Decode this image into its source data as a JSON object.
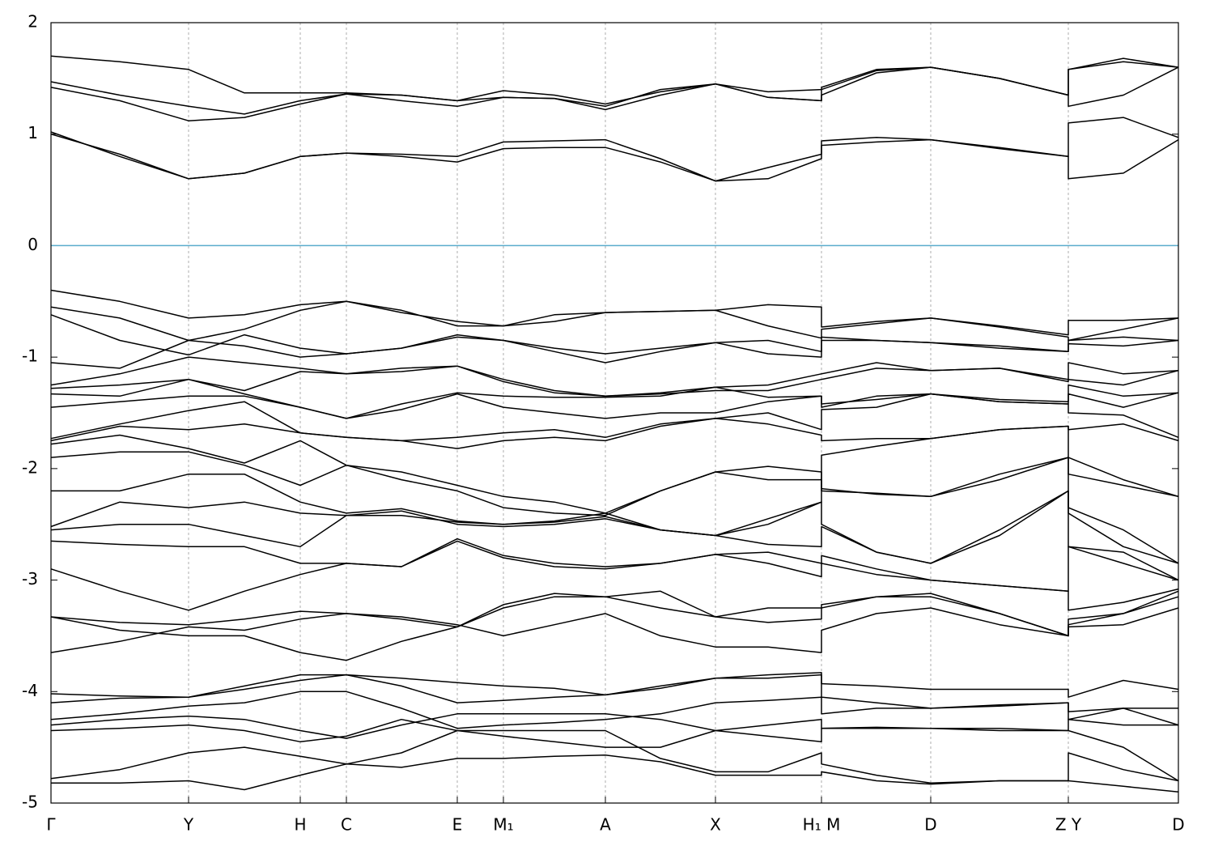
{
  "chart_data": {
    "type": "line",
    "color": "#000000",
    "x": [
      0,
      0.85,
      1.7,
      2.39,
      3.08,
      3.65,
      4.33,
      5.02,
      5.59,
      6.22,
      6.85,
      7.53,
      8.21,
      8.86,
      9.52,
      9.52,
      10.2,
      10.87,
      11.72,
      12.57,
      12.57,
      13.25,
      13.93
    ],
    "xlim": [
      0,
      13.93
    ],
    "ylim": [
      -5,
      2
    ],
    "xticks": [
      {
        "value": 0,
        "label": "Γ"
      },
      {
        "value": 1.7,
        "label": "Y"
      },
      {
        "value": 3.08,
        "label": "H"
      },
      {
        "value": 3.65,
        "label": "C"
      },
      {
        "value": 5.02,
        "label": "E"
      },
      {
        "value": 5.59,
        "label": "M₁"
      },
      {
        "value": 6.85,
        "label": "A"
      },
      {
        "value": 8.21,
        "label": "X"
      },
      {
        "value": 9.52,
        "label": "H₁ M"
      },
      {
        "value": 10.87,
        "label": "D"
      },
      {
        "value": 12.57,
        "label": "Z Y"
      },
      {
        "value": 13.93,
        "label": "D"
      }
    ],
    "yticks": [
      2,
      1,
      0,
      -1,
      -2,
      -3,
      -4,
      -5
    ],
    "xgrid": true,
    "reference_line": {
      "value": 0,
      "color": "#5aaccc"
    },
    "series": [
      {
        "values": [
          1.02,
          0.8,
          0.6,
          0.65,
          0.8,
          0.83,
          0.8,
          0.75,
          0.87,
          0.88,
          0.88,
          0.75,
          0.58,
          0.6,
          0.78,
          0.9,
          0.93,
          0.95,
          0.88,
          0.8,
          0.6,
          0.65,
          0.95
        ]
      },
      {
        "values": [
          1.0,
          0.82,
          0.6,
          0.65,
          0.8,
          0.83,
          0.82,
          0.8,
          0.93,
          0.94,
          0.95,
          0.78,
          0.58,
          0.7,
          0.82,
          0.94,
          0.97,
          0.95,
          0.87,
          0.8,
          1.1,
          1.15,
          0.97
        ]
      },
      {
        "values": [
          1.42,
          1.3,
          1.12,
          1.15,
          1.27,
          1.36,
          1.3,
          1.25,
          1.33,
          1.32,
          1.22,
          1.35,
          1.45,
          1.33,
          1.3,
          1.35,
          1.55,
          1.6,
          1.5,
          1.35,
          1.25,
          1.35,
          1.6
        ]
      },
      {
        "values": [
          1.47,
          1.35,
          1.25,
          1.18,
          1.3,
          1.36,
          1.35,
          1.3,
          1.39,
          1.35,
          1.27,
          1.38,
          1.45,
          1.38,
          1.4,
          1.42,
          1.58,
          1.6,
          1.5,
          1.35,
          1.58,
          1.68,
          1.6
        ]
      },
      {
        "values": [
          1.7,
          1.65,
          1.58,
          1.37,
          1.37,
          1.37,
          1.35,
          1.3,
          1.33,
          1.32,
          1.25,
          1.4,
          1.45,
          1.33,
          1.3,
          1.4,
          1.57,
          1.6,
          1.5,
          1.35,
          1.58,
          1.65,
          1.6
        ]
      },
      {
        "values": [
          -0.4,
          -0.5,
          -0.65,
          -0.62,
          -0.53,
          -0.5,
          -0.6,
          -0.68,
          -0.72,
          -0.62,
          -0.6,
          -0.59,
          -0.58,
          -0.53,
          -0.55,
          -0.73,
          -0.68,
          -0.65,
          -0.72,
          -0.8,
          -0.67,
          -0.67,
          -0.65
        ]
      },
      {
        "values": [
          -0.55,
          -0.65,
          -0.85,
          -0.75,
          -0.58,
          -0.5,
          -0.58,
          -0.72,
          -0.72,
          -0.68,
          -0.6,
          -0.59,
          -0.58,
          -0.72,
          -0.83,
          -0.75,
          -0.7,
          -0.65,
          -0.73,
          -0.82,
          -0.85,
          -0.75,
          -0.65
        ]
      },
      {
        "values": [
          -0.62,
          -0.85,
          -0.98,
          -0.8,
          -0.92,
          -0.97,
          -0.92,
          -0.8,
          -0.85,
          -0.92,
          -0.97,
          -0.92,
          -0.87,
          -0.85,
          -0.95,
          -0.85,
          -0.85,
          -0.87,
          -0.9,
          -0.95,
          -0.85,
          -0.82,
          -0.85
        ]
      },
      {
        "values": [
          -1.05,
          -1.1,
          -0.85,
          -0.9,
          -1.0,
          -0.97,
          -0.92,
          -0.82,
          -0.85,
          -0.95,
          -1.05,
          -0.95,
          -0.87,
          -0.97,
          -1.0,
          -0.82,
          -0.85,
          -0.87,
          -0.92,
          -0.95,
          -0.88,
          -0.9,
          -0.85
        ]
      },
      {
        "values": [
          -1.25,
          -1.15,
          -1.0,
          -1.05,
          -1.1,
          -1.15,
          -1.13,
          -1.08,
          -1.2,
          -1.3,
          -1.35,
          -1.32,
          -1.27,
          -1.25,
          -1.15,
          -1.15,
          -1.05,
          -1.12,
          -1.1,
          -1.2,
          -1.05,
          -1.15,
          -1.12
        ]
      },
      {
        "values": [
          -1.28,
          -1.25,
          -1.2,
          -1.3,
          -1.13,
          -1.15,
          -1.1,
          -1.08,
          -1.22,
          -1.32,
          -1.35,
          -1.33,
          -1.3,
          -1.3,
          -1.2,
          -1.2,
          -1.1,
          -1.12,
          -1.1,
          -1.22,
          -1.2,
          -1.25,
          -1.12
        ]
      },
      {
        "values": [
          -1.33,
          -1.35,
          -1.2,
          -1.33,
          -1.45,
          -1.55,
          -1.42,
          -1.32,
          -1.35,
          -1.36,
          -1.36,
          -1.35,
          -1.27,
          -1.36,
          -1.35,
          -1.42,
          -1.38,
          -1.33,
          -1.38,
          -1.4,
          -1.25,
          -1.35,
          -1.32
        ]
      },
      {
        "values": [
          -1.45,
          -1.4,
          -1.35,
          -1.35,
          -1.45,
          -1.55,
          -1.47,
          -1.33,
          -1.45,
          -1.5,
          -1.55,
          -1.5,
          -1.5,
          -1.4,
          -1.35,
          -1.45,
          -1.35,
          -1.33,
          -1.4,
          -1.42,
          -1.33,
          -1.45,
          -1.32
        ]
      },
      {
        "values": [
          -1.73,
          -1.6,
          -1.48,
          -1.4,
          -1.68,
          -1.72,
          -1.75,
          -1.82,
          -1.75,
          -1.72,
          -1.75,
          -1.62,
          -1.55,
          -1.5,
          -1.65,
          -1.47,
          -1.45,
          -1.33,
          -1.4,
          -1.42,
          -1.5,
          -1.52,
          -1.72
        ]
      },
      {
        "values": [
          -1.75,
          -1.62,
          -1.65,
          -1.6,
          -1.68,
          -1.72,
          -1.75,
          -1.72,
          -1.68,
          -1.65,
          -1.72,
          -1.6,
          -1.55,
          -1.6,
          -1.7,
          -1.75,
          -1.73,
          -1.73,
          -1.65,
          -1.62,
          -1.65,
          -1.6,
          -1.75
        ]
      },
      {
        "values": [
          -1.78,
          -1.7,
          -1.82,
          -1.95,
          -1.75,
          -1.97,
          -2.03,
          -2.15,
          -2.25,
          -2.3,
          -2.4,
          -2.55,
          -2.6,
          -2.5,
          -2.3,
          -1.88,
          -1.8,
          -1.73,
          -1.65,
          -1.62,
          -1.9,
          -2.1,
          -2.25
        ]
      },
      {
        "values": [
          -1.9,
          -1.85,
          -1.85,
          -1.97,
          -2.15,
          -1.97,
          -2.1,
          -2.2,
          -2.35,
          -2.4,
          -2.42,
          -2.2,
          -2.03,
          -2.1,
          -2.1,
          -2.2,
          -2.22,
          -2.25,
          -2.05,
          -1.9,
          -2.05,
          -2.15,
          -2.25
        ]
      },
      {
        "values": [
          -2.2,
          -2.2,
          -2.05,
          -2.05,
          -2.3,
          -2.4,
          -2.36,
          -2.47,
          -2.5,
          -2.47,
          -2.4,
          -2.2,
          -2.03,
          -1.98,
          -2.03,
          -2.18,
          -2.23,
          -2.25,
          -2.1,
          -1.9,
          -2.35,
          -2.55,
          -2.85
        ]
      },
      {
        "values": [
          -2.52,
          -2.3,
          -2.35,
          -2.3,
          -2.4,
          -2.42,
          -2.38,
          -2.5,
          -2.52,
          -2.5,
          -2.45,
          -2.55,
          -2.6,
          -2.45,
          -2.3,
          -2.5,
          -2.75,
          -2.85,
          -2.55,
          -2.2,
          -2.4,
          -2.7,
          -2.85
        ]
      },
      {
        "values": [
          -2.55,
          -2.5,
          -2.5,
          -2.6,
          -2.7,
          -2.42,
          -2.42,
          -2.48,
          -2.5,
          -2.48,
          -2.43,
          -2.55,
          -2.6,
          -2.68,
          -2.7,
          -2.52,
          -2.75,
          -2.85,
          -2.6,
          -2.2,
          -2.7,
          -2.75,
          -3.0
        ]
      },
      {
        "values": [
          -2.65,
          -2.68,
          -2.7,
          -2.7,
          -2.85,
          -2.85,
          -2.88,
          -2.63,
          -2.78,
          -2.85,
          -2.88,
          -2.85,
          -2.77,
          -2.75,
          -2.85,
          -2.85,
          -2.95,
          -3.0,
          -3.05,
          -3.1,
          -2.7,
          -2.85,
          -3.0
        ]
      },
      {
        "values": [
          -2.9,
          -3.1,
          -3.27,
          -3.1,
          -2.95,
          -2.85,
          -2.88,
          -2.65,
          -2.8,
          -2.88,
          -2.9,
          -2.85,
          -2.77,
          -2.85,
          -2.97,
          -2.78,
          -2.9,
          -3.0,
          -3.05,
          -3.1,
          -3.27,
          -3.2,
          -3.08
        ]
      },
      {
        "values": [
          -3.33,
          -3.38,
          -3.4,
          -3.35,
          -3.28,
          -3.3,
          -3.35,
          -3.42,
          -3.25,
          -3.15,
          -3.15,
          -3.1,
          -3.33,
          -3.25,
          -3.25,
          -3.25,
          -3.15,
          -3.15,
          -3.3,
          -3.5,
          -3.35,
          -3.3,
          -3.1
        ]
      },
      {
        "values": [
          -3.33,
          -3.45,
          -3.5,
          -3.5,
          -3.65,
          -3.72,
          -3.55,
          -3.42,
          -3.22,
          -3.12,
          -3.15,
          -3.25,
          -3.33,
          -3.38,
          -3.35,
          -3.22,
          -3.15,
          -3.12,
          -3.3,
          -3.5,
          -3.4,
          -3.3,
          -3.15
        ]
      },
      {
        "values": [
          -3.65,
          -3.55,
          -3.42,
          -3.45,
          -3.35,
          -3.3,
          -3.33,
          -3.4,
          -3.5,
          -3.4,
          -3.3,
          -3.5,
          -3.6,
          -3.6,
          -3.65,
          -3.45,
          -3.3,
          -3.25,
          -3.4,
          -3.5,
          -3.42,
          -3.4,
          -3.25
        ]
      },
      {
        "values": [
          -4.02,
          -4.04,
          -4.05,
          -3.95,
          -3.85,
          -3.85,
          -3.88,
          -3.92,
          -3.95,
          -3.97,
          -4.03,
          -3.95,
          -3.88,
          -3.88,
          -3.85,
          -3.93,
          -3.95,
          -3.98,
          -3.98,
          -3.98,
          -4.05,
          -3.9,
          -3.98
        ]
      },
      {
        "values": [
          -4.1,
          -4.06,
          -4.05,
          -3.98,
          -3.9,
          -3.85,
          -3.95,
          -4.1,
          -4.08,
          -4.05,
          -4.03,
          -3.97,
          -3.88,
          -3.85,
          -3.83,
          -4.05,
          -4.1,
          -4.15,
          -4.13,
          -4.1,
          -4.25,
          -4.15,
          -4.15
        ]
      },
      {
        "values": [
          -4.25,
          -4.2,
          -4.13,
          -4.1,
          -4.0,
          -4.0,
          -4.15,
          -4.33,
          -4.3,
          -4.28,
          -4.25,
          -4.2,
          -4.1,
          -4.08,
          -4.05,
          -4.2,
          -4.15,
          -4.15,
          -4.12,
          -4.1,
          -4.18,
          -4.15,
          -4.3
        ]
      },
      {
        "values": [
          -4.3,
          -4.25,
          -4.22,
          -4.25,
          -4.35,
          -4.42,
          -4.3,
          -4.2,
          -4.2,
          -4.2,
          -4.2,
          -4.25,
          -4.35,
          -4.4,
          -4.45,
          -4.33,
          -4.32,
          -4.33,
          -4.33,
          -4.35,
          -4.25,
          -4.3,
          -4.3
        ]
      },
      {
        "values": [
          -4.35,
          -4.33,
          -4.3,
          -4.35,
          -4.45,
          -4.4,
          -4.25,
          -4.35,
          -4.4,
          -4.45,
          -4.5,
          -4.5,
          -4.35,
          -4.3,
          -4.25,
          -4.33,
          -4.33,
          -4.33,
          -4.35,
          -4.35,
          -4.35,
          -4.5,
          -4.8
        ]
      },
      {
        "values": [
          -4.78,
          -4.7,
          -4.55,
          -4.5,
          -4.58,
          -4.65,
          -4.55,
          -4.35,
          -4.35,
          -4.35,
          -4.35,
          -4.6,
          -4.72,
          -4.72,
          -4.55,
          -4.65,
          -4.75,
          -4.82,
          -4.8,
          -4.8,
          -4.55,
          -4.7,
          -4.8
        ]
      },
      {
        "values": [
          -4.82,
          -4.82,
          -4.8,
          -4.88,
          -4.75,
          -4.65,
          -4.68,
          -4.6,
          -4.6,
          -4.58,
          -4.57,
          -4.63,
          -4.75,
          -4.75,
          -4.75,
          -4.72,
          -4.8,
          -4.83,
          -4.8,
          -4.8,
          -4.8,
          -4.85,
          -4.9
        ]
      }
    ]
  }
}
